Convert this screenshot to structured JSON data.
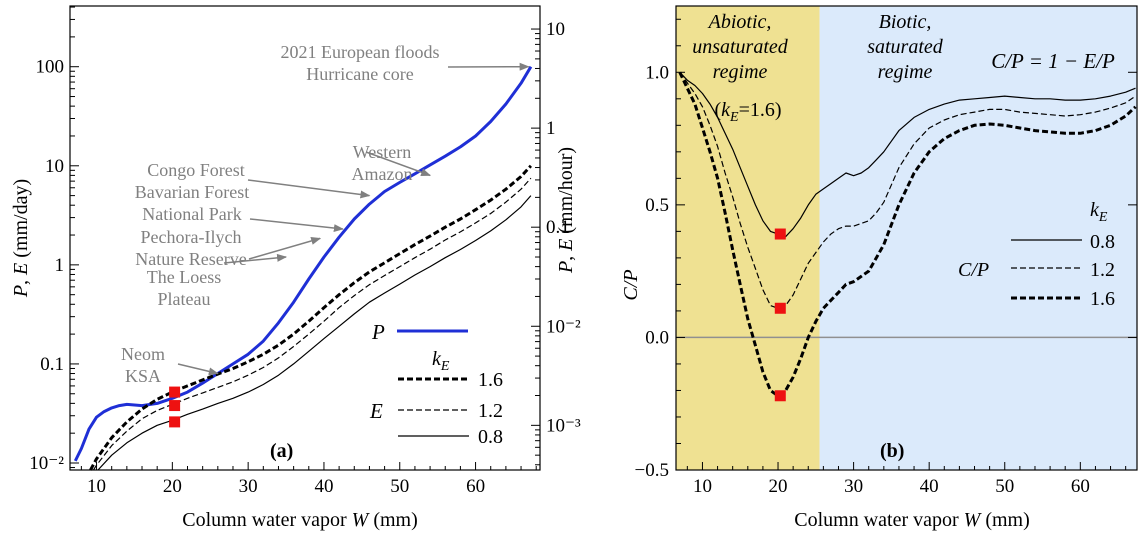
{
  "chart_data": [
    {
      "type": "line",
      "panel_label": "(a)",
      "xlabel": "Column water vapor W (mm)",
      "ylabel_left": "P, E (mm/day)",
      "ylabel_right": "P, E (mm/hour)",
      "y_scale": "log",
      "xlim": [
        6.5,
        68.5
      ],
      "ylim": [
        0.0085,
        410
      ],
      "x_ticks": [
        "10",
        "20",
        "30",
        "40",
        "50",
        "60"
      ],
      "y_ticks_left": [
        "10⁻²",
        "0.1",
        "1",
        "10",
        "100"
      ],
      "y_ticks_right": [
        "10⁻³",
        "10⁻²",
        "0.1",
        "1",
        "10"
      ],
      "grid": false,
      "legend": {
        "P_label": "P",
        "E_label": "E",
        "kE_label": "kE",
        "entries": [
          "1.6",
          "1.2",
          "0.8"
        ]
      },
      "series": [
        {
          "name": "P",
          "color": "#1f2fd6",
          "x": [
            7.2,
            8,
            9,
            10,
            11,
            12,
            13,
            14,
            16,
            18,
            20,
            22,
            24,
            26,
            28,
            30,
            32,
            34,
            36,
            38,
            40,
            42,
            44,
            46,
            48,
            50,
            52,
            54,
            56,
            58,
            60,
            62,
            64,
            66,
            67.3
          ],
          "values": [
            0.0105,
            0.014,
            0.022,
            0.029,
            0.033,
            0.036,
            0.038,
            0.039,
            0.038,
            0.04,
            0.045,
            0.052,
            0.064,
            0.08,
            0.1,
            0.125,
            0.17,
            0.26,
            0.42,
            0.72,
            1.2,
            1.9,
            2.9,
            4.1,
            5.5,
            6.8,
            8.3,
            10.2,
            12.5,
            15.5,
            20,
            28,
            42,
            68,
            100
          ]
        },
        {
          "name": "1.6",
          "x": [
            9.2,
            10,
            12,
            14,
            16,
            18,
            20,
            22,
            24,
            26,
            28,
            30,
            32,
            34,
            36,
            38,
            40,
            42,
            44,
            46,
            48,
            50,
            52,
            54,
            56,
            58,
            60,
            62,
            64,
            66,
            67.3
          ],
          "values": [
            0.0085,
            0.011,
            0.018,
            0.026,
            0.035,
            0.044,
            0.052,
            0.06,
            0.069,
            0.079,
            0.09,
            0.105,
            0.125,
            0.155,
            0.2,
            0.27,
            0.37,
            0.5,
            0.66,
            0.85,
            1.05,
            1.3,
            1.6,
            1.95,
            2.4,
            2.9,
            3.6,
            4.5,
            5.8,
            7.8,
            10
          ]
        },
        {
          "name": "1.2",
          "x": [
            9.6,
            10,
            12,
            14,
            16,
            18,
            20,
            22,
            24,
            26,
            28,
            30,
            32,
            34,
            36,
            38,
            40,
            42,
            44,
            46,
            48,
            50,
            52,
            54,
            56,
            58,
            60,
            62,
            64,
            66,
            67.3
          ],
          "values": [
            0.0085,
            0.0095,
            0.015,
            0.021,
            0.028,
            0.034,
            0.039,
            0.045,
            0.051,
            0.058,
            0.066,
            0.077,
            0.092,
            0.115,
            0.15,
            0.2,
            0.27,
            0.37,
            0.49,
            0.63,
            0.78,
            0.96,
            1.18,
            1.44,
            1.78,
            2.15,
            2.65,
            3.3,
            4.3,
            5.8,
            7.5
          ]
        },
        {
          "name": "0.8",
          "x": [
            10.2,
            12,
            14,
            16,
            18,
            20,
            22,
            24,
            26,
            28,
            30,
            32,
            34,
            36,
            38,
            40,
            42,
            44,
            46,
            48,
            50,
            52,
            54,
            56,
            58,
            60,
            62,
            64,
            66,
            67.3
          ],
          "values": [
            0.0085,
            0.012,
            0.016,
            0.02,
            0.024,
            0.027,
            0.031,
            0.035,
            0.04,
            0.045,
            0.052,
            0.062,
            0.077,
            0.1,
            0.134,
            0.18,
            0.24,
            0.32,
            0.42,
            0.52,
            0.64,
            0.79,
            0.96,
            1.18,
            1.43,
            1.76,
            2.2,
            2.85,
            3.85,
            5
          ]
        }
      ],
      "markers": {
        "color": "#ee1111",
        "x": 20.3,
        "values": [
          0.052,
          0.038,
          0.026
        ]
      },
      "annotations": [
        {
          "lines": [
            "2021 European floods",
            "Hurricane core"
          ],
          "x": 67,
          "y": 100
        },
        {
          "lines": [
            "Western",
            "Amazon"
          ],
          "x": 54,
          "y": 8
        },
        {
          "lines": [
            "Congo Forest"
          ],
          "x": 46,
          "y": 5
        },
        {
          "lines": [
            "Bavarian Forest",
            "National Park"
          ],
          "x": 42.5,
          "y": 2.3
        },
        {
          "lines": [
            "Pechora-Ilych",
            "Nature Reserve"
          ],
          "x": 39.5,
          "y": 1.85
        },
        {
          "lines": [
            "The Loess",
            "Plateau"
          ],
          "x": 35,
          "y": 1.2
        },
        {
          "lines": [
            "Neom",
            "KSA"
          ],
          "x": 26,
          "y": 0.08
        }
      ]
    },
    {
      "type": "line",
      "panel_label": "(b)",
      "xlabel": "Column water vapor W (mm)",
      "ylabel": "C/P",
      "xlim": [
        6.5,
        67.5
      ],
      "ylim": [
        -0.5,
        1.25
      ],
      "x_ticks": [
        "10",
        "20",
        "30",
        "40",
        "50",
        "60"
      ],
      "y_ticks": [
        "−0.5",
        "0.0",
        "0.5",
        "1.0"
      ],
      "y_tick_values": [
        -0.5,
        0,
        0.5,
        1.0
      ],
      "grid": false,
      "zero_line": true,
      "regions": [
        {
          "lines": [
            "Abiotic,",
            "unsaturated",
            "regime"
          ],
          "x_range": [
            6.5,
            25.5
          ],
          "color": "#efe192"
        },
        {
          "lines": [
            "Biotic,",
            "saturated",
            "regime"
          ],
          "x_range": [
            25.5,
            67.5
          ],
          "color": "#dbeafb"
        }
      ],
      "annotation_kE": "(kE=1.6)",
      "formula": "C/P = 1 − E/P",
      "legend": {
        "kE_label": "kE",
        "CP_label": "C/P",
        "entries": [
          "0.8",
          "1.2",
          "1.6"
        ]
      },
      "series": [
        {
          "name": "0.8",
          "x": [
            7,
            8,
            9,
            10,
            11,
            12,
            13,
            14,
            15,
            16,
            17,
            18,
            19,
            20,
            21,
            22,
            23,
            24,
            25,
            26,
            27,
            28,
            29,
            30,
            31,
            32,
            33,
            34,
            36,
            38,
            40,
            42,
            44,
            46,
            48,
            50,
            52,
            54,
            56,
            58,
            60,
            62,
            64,
            66,
            67.3
          ],
          "values": [
            1.0,
            0.97,
            0.95,
            0.92,
            0.88,
            0.83,
            0.77,
            0.71,
            0.64,
            0.57,
            0.5,
            0.44,
            0.4,
            0.39,
            0.38,
            0.41,
            0.45,
            0.5,
            0.54,
            0.56,
            0.58,
            0.6,
            0.62,
            0.61,
            0.62,
            0.64,
            0.67,
            0.7,
            0.78,
            0.83,
            0.86,
            0.88,
            0.895,
            0.9,
            0.905,
            0.91,
            0.905,
            0.9,
            0.9,
            0.895,
            0.895,
            0.9,
            0.91,
            0.925,
            0.94
          ]
        },
        {
          "name": "1.2",
          "x": [
            7,
            8,
            9,
            10,
            11,
            12,
            13,
            14,
            15,
            16,
            17,
            18,
            19,
            20,
            21,
            22,
            23,
            24,
            25,
            26,
            27,
            28,
            29,
            30,
            31,
            32,
            33,
            34,
            36,
            38,
            40,
            42,
            44,
            46,
            48,
            50,
            52,
            54,
            56,
            58,
            60,
            62,
            64,
            66,
            67.3
          ],
          "values": [
            1.0,
            0.96,
            0.92,
            0.87,
            0.8,
            0.72,
            0.62,
            0.53,
            0.43,
            0.34,
            0.26,
            0.18,
            0.12,
            0.11,
            0.12,
            0.16,
            0.22,
            0.28,
            0.32,
            0.36,
            0.39,
            0.41,
            0.42,
            0.42,
            0.43,
            0.44,
            0.47,
            0.51,
            0.64,
            0.73,
            0.79,
            0.82,
            0.84,
            0.85,
            0.86,
            0.86,
            0.85,
            0.845,
            0.84,
            0.835,
            0.84,
            0.85,
            0.865,
            0.885,
            0.91
          ]
        },
        {
          "name": "1.6",
          "x": [
            7,
            8,
            9,
            10,
            11,
            12,
            13,
            14,
            15,
            16,
            17,
            18,
            19,
            20,
            21,
            22,
            23,
            24,
            25,
            26,
            27,
            28,
            29,
            30,
            31,
            32,
            33,
            34,
            36,
            38,
            40,
            42,
            44,
            46,
            48,
            50,
            52,
            54,
            56,
            58,
            60,
            62,
            64,
            66,
            67.3
          ],
          "values": [
            1.0,
            0.94,
            0.88,
            0.79,
            0.7,
            0.6,
            0.47,
            0.33,
            0.2,
            0.07,
            -0.03,
            -0.13,
            -0.2,
            -0.22,
            -0.2,
            -0.15,
            -0.08,
            0.0,
            0.06,
            0.11,
            0.14,
            0.17,
            0.2,
            0.21,
            0.23,
            0.25,
            0.3,
            0.35,
            0.5,
            0.62,
            0.7,
            0.75,
            0.78,
            0.8,
            0.805,
            0.8,
            0.79,
            0.78,
            0.775,
            0.77,
            0.77,
            0.78,
            0.8,
            0.835,
            0.87
          ]
        }
      ],
      "markers": {
        "color": "#ee1111",
        "x": 20.3,
        "values": [
          0.39,
          0.11,
          -0.22
        ]
      }
    }
  ]
}
